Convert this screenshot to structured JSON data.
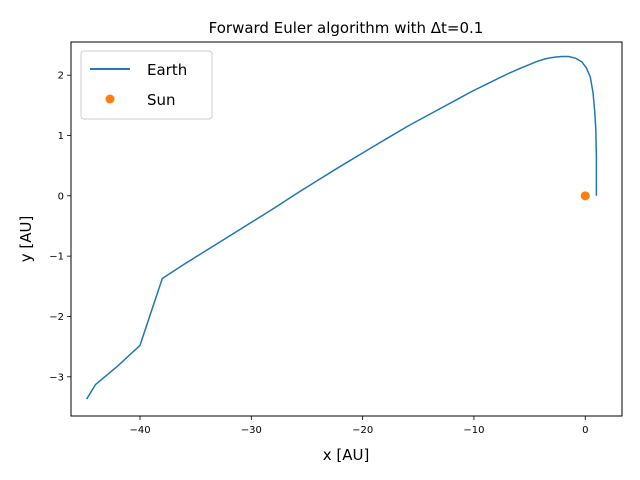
{
  "chart_data": {
    "type": "line",
    "title": "Forward Euler algorithm with Δt=0.1",
    "xlabel": "x [AU]",
    "ylabel": "y [AU]",
    "xlim": [
      -46.2,
      3.3
    ],
    "ylim": [
      -3.65,
      2.55
    ],
    "xticks": [
      -40,
      -30,
      -20,
      -10,
      0
    ],
    "yticks": [
      -3,
      -2,
      -1,
      0,
      1,
      2
    ],
    "grid": false,
    "legend": "upper-left",
    "series": [
      {
        "name": "Earth",
        "kind": "line",
        "color": "#1f77b4",
        "x": [
          1.0,
          1.0,
          0.95,
          0.85,
          0.7,
          0.45,
          0.1,
          -0.3,
          -0.85,
          -1.5,
          -2.1,
          -2.7,
          -3.1,
          -3.6,
          -4.3,
          -5.1,
          -6.0,
          -7.0,
          -8.0,
          -9.1,
          -10.2,
          -11.5,
          -13.0,
          -14.5,
          -16.0,
          -18.0,
          -20.0,
          -22.0,
          -24.0,
          -26.0,
          -28.0,
          -30.0,
          -32.0,
          -34.0,
          -36.0,
          -38.0,
          -40.0,
          -42.0,
          -44.0,
          -44.8
        ],
        "y": [
          0.0,
          0.65,
          1.1,
          1.4,
          1.7,
          1.97,
          2.12,
          2.22,
          2.28,
          2.31,
          2.31,
          2.3,
          2.29,
          2.27,
          2.23,
          2.17,
          2.1,
          2.02,
          1.93,
          1.83,
          1.73,
          1.6,
          1.45,
          1.3,
          1.15,
          0.93,
          0.71,
          0.49,
          0.26,
          0.03,
          -0.21,
          -0.44,
          -0.67,
          -0.9,
          -1.13,
          -1.37,
          -2.48,
          -2.82,
          -3.13,
          -3.37
        ]
      },
      {
        "name": "Sun",
        "kind": "scatter",
        "color": "#ff7f0e",
        "x": [
          0.0
        ],
        "y": [
          0.0
        ]
      }
    ]
  }
}
